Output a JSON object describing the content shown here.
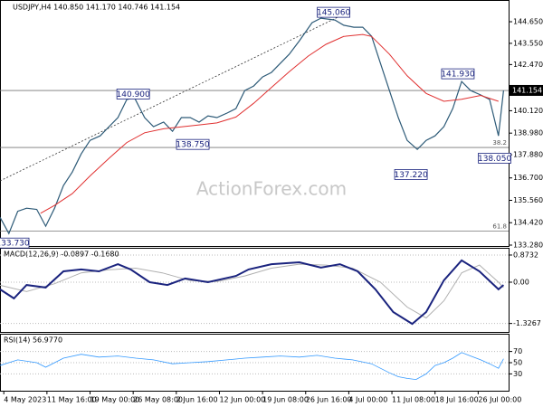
{
  "chart_data": {
    "type": "line",
    "header": "USDJPY,H4  140.850 141.170 140.746 141.154",
    "watermark": "ActionForex.com",
    "xlim": [
      0,
      401
    ],
    "xticks": [
      {
        "value": 3,
        "label": "4 May 2023"
      },
      {
        "value": 37,
        "label": "11 May 16:00"
      },
      {
        "value": 71,
        "label": "19 May 00:00"
      },
      {
        "value": 105,
        "label": "26 May 08:00"
      },
      {
        "value": 139,
        "label": "2 Jun 16:00"
      },
      {
        "value": 173,
        "label": "12 Jun 00:00"
      },
      {
        "value": 207,
        "label": "19 Jun 08:00"
      },
      {
        "value": 241,
        "label": "26 Jun 16:00"
      },
      {
        "value": 275,
        "label": "4 Jul 00:00"
      },
      {
        "value": 309,
        "label": "11 Jul 08:00"
      },
      {
        "value": 343,
        "label": "18 Jul 16:00"
      },
      {
        "value": 377,
        "label": "26 Jul 00:00"
      }
    ],
    "ylim": [
      133.234,
      145.756
    ],
    "yticks": [
      {
        "value": 144.65,
        "label": "144.650"
      },
      {
        "value": 143.55,
        "label": "143.550"
      },
      {
        "value": 142.47,
        "label": "142.470"
      },
      {
        "value": 140.12,
        "label": "140.120"
      },
      {
        "value": 138.98,
        "label": "138.980"
      },
      {
        "value": 137.88,
        "label": "137.880"
      },
      {
        "value": 136.7,
        "label": "136.700"
      },
      {
        "value": 135.56,
        "label": "135.560"
      },
      {
        "value": 134.42,
        "label": "134.420"
      },
      {
        "value": 133.28,
        "label": "133.280"
      }
    ],
    "last_price": {
      "value": 141.154,
      "label": "141.154"
    },
    "price": {
      "color": "#2e5b78",
      "x": [
        0,
        7,
        14,
        21,
        29,
        36,
        43,
        50,
        57,
        64,
        71,
        79,
        86,
        93,
        100,
        106,
        114,
        121,
        129,
        136,
        143,
        150,
        157,
        164,
        171,
        179,
        186,
        193,
        200,
        207,
        214,
        221,
        228,
        236,
        246,
        253,
        264,
        271,
        279,
        286,
        293,
        300,
        307,
        314,
        321,
        329,
        336,
        343,
        350,
        357,
        364,
        371,
        379,
        386,
        393,
        397
      ],
      "values": [
        134.7,
        133.87,
        135.0,
        135.16,
        135.1,
        134.24,
        135.16,
        136.31,
        137.0,
        137.92,
        138.61,
        138.84,
        139.31,
        139.77,
        140.69,
        140.78,
        139.77,
        139.31,
        139.54,
        139.07,
        139.77,
        139.77,
        139.54,
        139.86,
        139.77,
        140.0,
        140.23,
        141.15,
        141.38,
        141.84,
        142.07,
        142.53,
        142.99,
        143.68,
        144.6,
        144.83,
        144.74,
        144.47,
        144.37,
        144.37,
        143.91,
        142.53,
        141.15,
        139.77,
        138.61,
        138.15,
        138.61,
        138.84,
        139.31,
        140.23,
        141.61,
        141.15,
        140.92,
        140.69,
        138.84,
        141.15
      ]
    },
    "moving_average": {
      "color": "#e03030",
      "x": [
        32,
        43,
        57,
        71,
        86,
        100,
        114,
        129,
        143,
        157,
        171,
        186,
        200,
        214,
        228,
        243,
        257,
        271,
        286,
        293,
        307,
        321,
        336,
        350,
        364,
        379,
        393
      ],
      "values": [
        134.9,
        135.3,
        135.9,
        136.8,
        137.7,
        138.5,
        139.0,
        139.2,
        139.3,
        139.4,
        139.5,
        139.8,
        140.5,
        141.3,
        142.1,
        142.9,
        143.5,
        143.9,
        144.0,
        143.9,
        143.0,
        141.9,
        141.0,
        140.6,
        140.7,
        140.9,
        140.6
      ]
    },
    "hlines": [
      141.15,
      138.25,
      134.0
    ],
    "fib_labels": [
      "38.2",
      "61.8"
    ],
    "trendline": {
      "x": [
        0,
        268
      ],
      "values": [
        136.55,
        144.93
      ]
    },
    "annotations": [
      {
        "value": 145.06,
        "label": "145.060",
        "x": 263
      },
      {
        "value": 140.9,
        "label": "140.900",
        "x": 105
      },
      {
        "value": 138.75,
        "label": "138.750",
        "x": 152
      },
      {
        "value": 141.93,
        "label": "141.930",
        "x": 361
      },
      {
        "value": 137.22,
        "label": "137.220",
        "x": 324
      },
      {
        "value": 138.05,
        "label": "138.050",
        "x": 390
      },
      {
        "value": 133.73,
        "label": "133.730",
        "x": 10
      }
    ],
    "macd": {
      "label": "MACD(12,26,9) -0.0897 -0.1680",
      "ylim": [
        -1.628,
        1.076
      ],
      "yticks": [
        0.8732,
        {
          "value": 0,
          "label": "0.00"
        },
        -1.3267
      ],
      "x": [
        0,
        11,
        21,
        36,
        50,
        64,
        78,
        93,
        103,
        118,
        132,
        146,
        164,
        186,
        196,
        214,
        236,
        253,
        268,
        282,
        296,
        310,
        325,
        336,
        350,
        364,
        378,
        393,
        397
      ],
      "values": [
        -0.23,
        -0.52,
        -0.09,
        -0.17,
        0.35,
        0.41,
        0.35,
        0.58,
        0.41,
        0,
        -0.09,
        0.12,
        0,
        0.2,
        0.41,
        0.58,
        0.64,
        0.47,
        0.58,
        0.35,
        -0.23,
        -0.96,
        -1.34,
        -0.96,
        0.06,
        0.7,
        0.35,
        -0.23,
        -0.09
      ],
      "color": "#1a237e",
      "signal": {
        "color": "#b0b0b0",
        "x": [
          0,
          21,
          43,
          64,
          86,
          107,
          128,
          150,
          171,
          193,
          214,
          236,
          257,
          278,
          300,
          321,
          336,
          350,
          364,
          378,
          393,
          397
        ],
        "values": [
          -0.1,
          -0.3,
          -0.05,
          0.3,
          0.4,
          0.45,
          0.3,
          0.05,
          0.02,
          0.2,
          0.45,
          0.58,
          0.55,
          0.45,
          0.0,
          -0.8,
          -1.15,
          -0.6,
          0.3,
          0.55,
          0.0,
          -0.17
        ]
      }
    },
    "rsi": {
      "label": "RSI(14) 56.9770",
      "ylim": [
        0,
        100
      ],
      "yticks": [
        70,
        50,
        30
      ],
      "color": "#3399ff",
      "x": [
        0,
        14,
        29,
        36,
        50,
        64,
        78,
        93,
        107,
        121,
        136,
        150,
        164,
        179,
        193,
        207,
        221,
        236,
        250,
        264,
        278,
        293,
        300,
        307,
        314,
        321,
        328,
        336,
        343,
        350,
        357,
        364,
        371,
        379,
        386,
        393,
        397
      ],
      "values": [
        45,
        55,
        50,
        42,
        58,
        65,
        60,
        62,
        58,
        55,
        48,
        50,
        52,
        55,
        58,
        60,
        62,
        60,
        63,
        58,
        55,
        48,
        40,
        32,
        25,
        22,
        20,
        30,
        45,
        50,
        58,
        68,
        62,
        55,
        48,
        40,
        57
      ]
    }
  }
}
